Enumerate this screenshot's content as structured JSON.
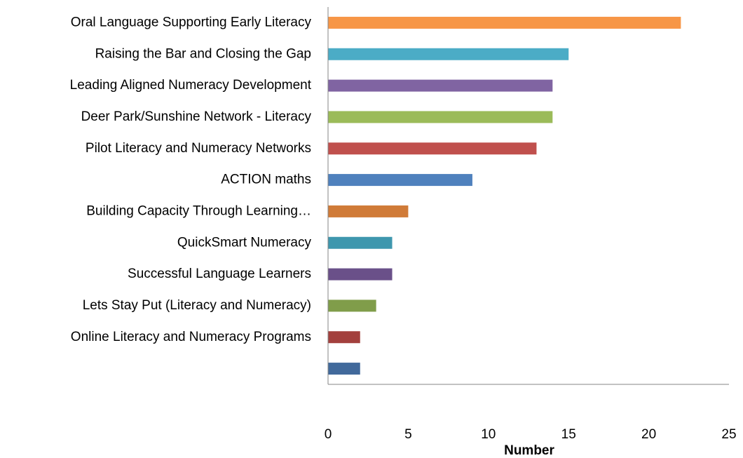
{
  "chart_data": {
    "type": "barh",
    "categories": [
      "Oral Language Supporting Early Literacy",
      "Raising the Bar and Closing the Gap",
      "Leading Aligned Numeracy Development",
      "Deer Park/Sunshine Network - Literacy",
      "Pilot Literacy and Numeracy Networks",
      "ACTION maths",
      "Building Capacity Through Learning…",
      "QuickSmart Numeracy",
      "Successful Language Learners",
      "Lets Stay Put (Literacy and Numeracy)",
      "Online Literacy and Numeracy Programs",
      null
    ],
    "values": [
      22,
      15,
      14,
      14,
      13,
      9,
      5,
      4,
      4,
      3,
      2,
      2
    ],
    "colors": [
      "#f79646",
      "#4bacc6",
      "#8064a2",
      "#9bbb59",
      "#c0504d",
      "#4f81bd",
      "#d07b38",
      "#3e97ae",
      "#6a5089",
      "#809d4a",
      "#a3403d",
      "#41699b"
    ],
    "xlabel": "Number",
    "xlim": [
      0,
      25
    ],
    "xticks": [
      0,
      5,
      10,
      15,
      20,
      25
    ],
    "grid": false
  }
}
